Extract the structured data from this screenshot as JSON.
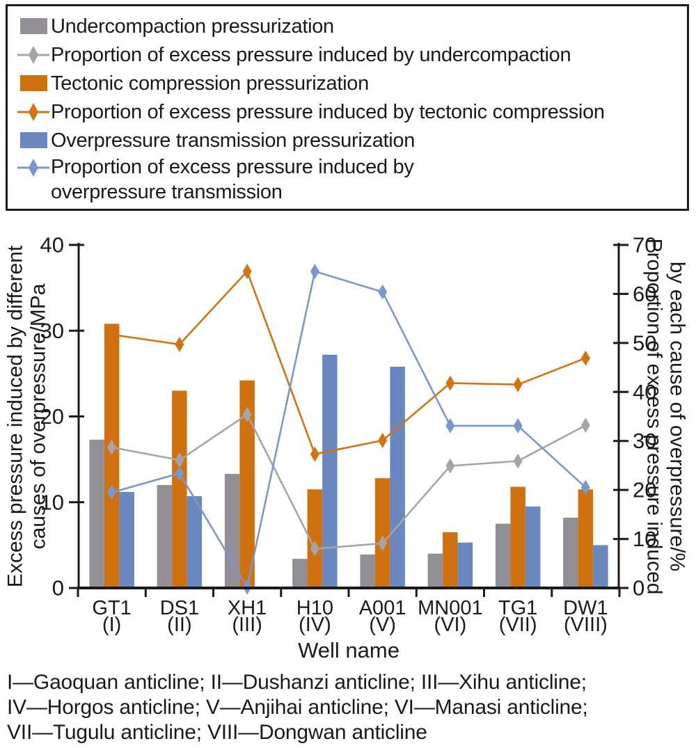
{
  "legend": {
    "items": [
      {
        "type": "bar",
        "color": "#928f97",
        "label": "Undercompaction pressurization"
      },
      {
        "type": "line",
        "color": "#a6a3aa",
        "label": "Proportion of excess pressure induced by undercompaction"
      },
      {
        "type": "bar",
        "color": "#d0710f",
        "label": "Tectonic compression pressurization"
      },
      {
        "type": "line",
        "color": "#d2740e",
        "label": "Proportion of excess pressure induced by tectonic compression"
      },
      {
        "type": "bar",
        "color": "#6a88c0",
        "label": "Overpressure transmission pressurization"
      },
      {
        "type": "line",
        "color": "#7b96cc",
        "label": "Proportion of excess pressure induced by",
        "label2": "overpressure transmission"
      }
    ]
  },
  "chart_data": {
    "type": "bar+line combo",
    "grid": false,
    "legend_position": "top",
    "categories": [
      "GT1",
      "DS1",
      "XH1",
      "H10",
      "A001",
      "MN001",
      "TG1",
      "DW1"
    ],
    "category_sublabels": [
      "(I)",
      "(II)",
      "(III)",
      "(IV)",
      "(V)",
      "(VI)",
      "(VII)",
      "(VIII)"
    ],
    "xlabel": "Well name",
    "left_axis": {
      "label": "Excess pressure induced by different causes of overpressure/MPa",
      "label_lines": [
        "Excess pressure induced by different",
        "causes of overpressure/MPa"
      ],
      "min": 0,
      "max": 40,
      "ticks": [
        0,
        10,
        20,
        30,
        40
      ]
    },
    "right_axis": {
      "label": "Proportion of excess pressure induced by each cause of overpressure/%",
      "label_lines": [
        "Proportion of excess pressure induced",
        "by each cause of overpressure/%"
      ],
      "min": 0,
      "max": 70,
      "ticks": [
        0,
        10,
        20,
        30,
        40,
        50,
        60,
        70
      ]
    },
    "bar_series": [
      {
        "key": "undercompaction",
        "name": "Undercompaction pressurization",
        "axis": "left",
        "color": "#928f97",
        "values": [
          17.3,
          12.0,
          13.3,
          3.4,
          3.9,
          4.0,
          7.5,
          8.2
        ]
      },
      {
        "key": "tectonic-compression",
        "name": "Tectonic compression pressurization",
        "axis": "left",
        "color": "#d0710f",
        "values": [
          30.8,
          23.0,
          24.2,
          11.5,
          12.8,
          6.5,
          11.8,
          11.5
        ]
      },
      {
        "key": "overpressure-transmission",
        "name": "Overpressure transmission pressurization",
        "axis": "left",
        "color": "#6a88c0",
        "values": [
          11.2,
          10.7,
          0,
          27.2,
          25.8,
          5.3,
          9.5,
          5.0
        ]
      }
    ],
    "line_series": [
      {
        "key": "undercompaction-proportion",
        "name": "Proportion of excess pressure induced by undercompaction",
        "axis": "right",
        "color": "#a6a3aa",
        "values": [
          28.7,
          26.1,
          35.4,
          8.0,
          9.1,
          24.9,
          25.9,
          33.2
        ]
      },
      {
        "key": "tectonic-compression-proportion",
        "name": "Proportion of excess pressure induced by tectonic compression",
        "axis": "right",
        "color": "#d2740e",
        "values": [
          51.7,
          49.7,
          64.6,
          27.3,
          30.1,
          41.8,
          41.5,
          46.9
        ]
      },
      {
        "key": "overpressure-transmission-proportion",
        "name": "Proportion of excess pressure induced by overpressure transmission",
        "axis": "right",
        "color": "#7b96cc",
        "values": [
          19.5,
          23.4,
          0.2,
          64.6,
          60.4,
          33.1,
          33.1,
          20.5
        ]
      }
    ]
  },
  "caption": {
    "lines": [
      "I—Gaoquan anticline; II—Dushanzi anticline; III—Xihu anticline;",
      "IV—Horgos anticline; V—Anjihai anticline; VI—Manasi anticline;",
      "VII—Tugulu anticline; VIII—Dongwan anticline"
    ]
  }
}
